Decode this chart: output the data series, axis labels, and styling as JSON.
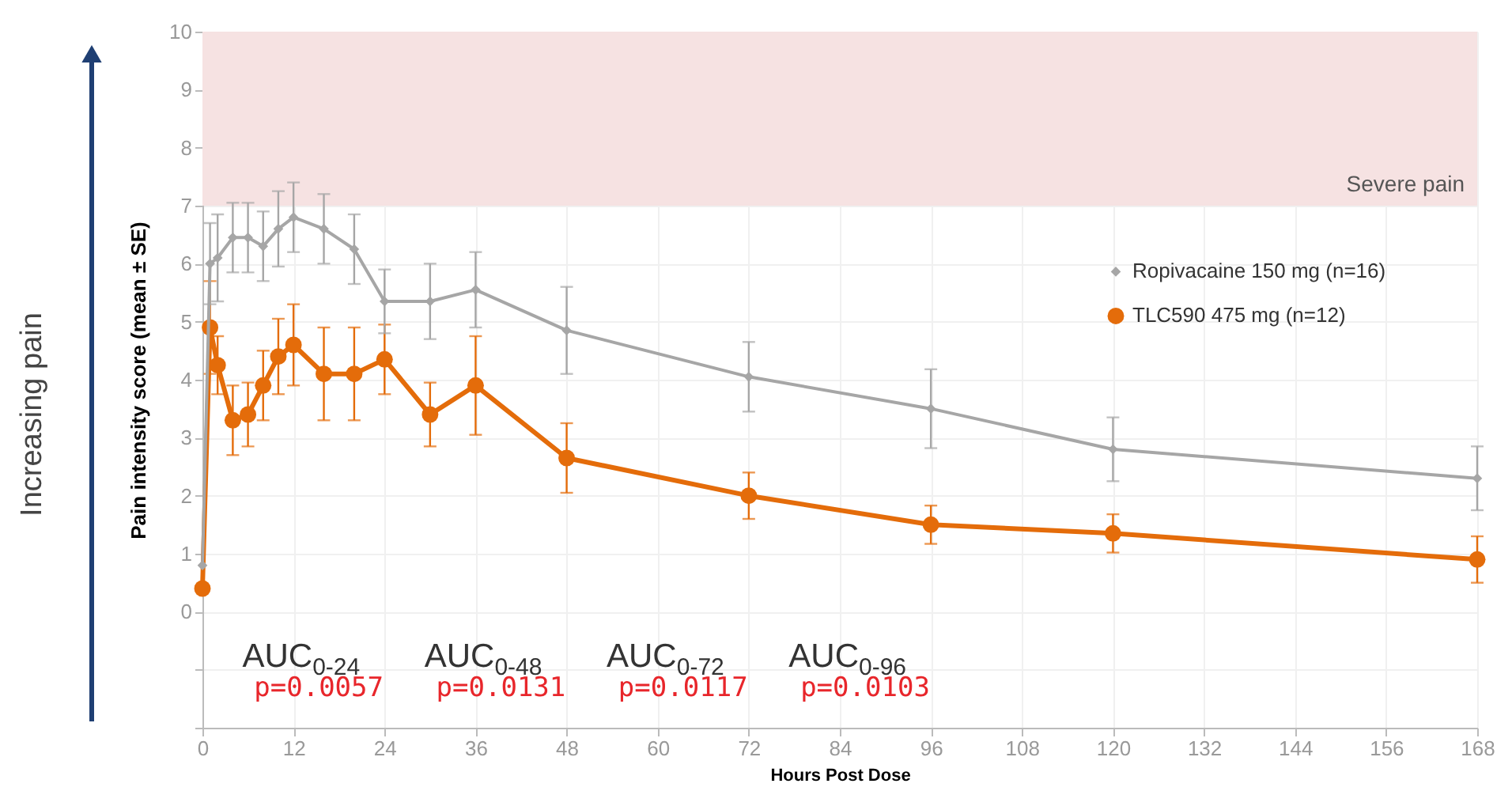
{
  "chart_data": {
    "type": "line",
    "xlabel": "Hours Post Dose",
    "ylabel": "Pain intensity score (mean ± SE)",
    "xlim": [
      0,
      168
    ],
    "xticks": [
      0,
      12,
      24,
      36,
      48,
      60,
      72,
      84,
      96,
      108,
      120,
      132,
      144,
      156,
      168
    ],
    "ylim": [
      -2,
      10
    ],
    "yticks": [
      {
        "value": -2,
        "label": null
      },
      {
        "value": -1,
        "label": null
      },
      0,
      1,
      2,
      3,
      4,
      5,
      6,
      7,
      8,
      9,
      10
    ],
    "grid": true,
    "legend": "right",
    "series": [
      {
        "name": "Ropivacaine 150 mg (n=16)",
        "color": "#a6a6a6",
        "marker": "diamond",
        "x": [
          0,
          1,
          2,
          4,
          6,
          8,
          10,
          12,
          16,
          20,
          24,
          30,
          36,
          48,
          72,
          96,
          120,
          168
        ],
        "values": [
          0.8,
          6.0,
          6.1,
          6.45,
          6.45,
          6.3,
          6.6,
          6.8,
          6.6,
          6.25,
          5.35,
          5.35,
          5.55,
          4.85,
          4.05,
          3.5,
          2.8,
          2.3
        ],
        "errors": [
          null,
          0.7,
          0.75,
          0.6,
          0.6,
          0.6,
          0.65,
          0.6,
          0.6,
          0.6,
          0.55,
          0.65,
          0.65,
          0.75,
          0.6,
          0.68,
          0.55,
          0.55
        ]
      },
      {
        "name": "TLC590 475 mg (n=12)",
        "color": "#e46c0a",
        "marker": "circle",
        "x": [
          0,
          1,
          2,
          4,
          6,
          8,
          10,
          12,
          16,
          20,
          24,
          30,
          36,
          48,
          72,
          96,
          120,
          168
        ],
        "values": [
          0.4,
          4.9,
          4.25,
          3.3,
          3.4,
          3.9,
          4.4,
          4.6,
          4.1,
          4.1,
          4.35,
          3.4,
          3.9,
          2.65,
          2.0,
          1.5,
          1.35,
          0.9
        ],
        "errors": [
          null,
          0.8,
          0.5,
          0.6,
          0.55,
          0.6,
          0.65,
          0.7,
          0.8,
          0.8,
          0.6,
          0.55,
          0.85,
          0.6,
          0.4,
          0.33,
          0.33,
          0.4
        ]
      }
    ],
    "bands": [
      {
        "axis": "y",
        "from": 7,
        "to": 10,
        "label": "Severe pain",
        "color": "#f6e2e2"
      }
    ],
    "annotations": [
      "AUC$_{0-24}$",
      "p=0.0057",
      "AUC$_{0-48}$",
      "p=0.0131",
      "AUC$_{0-72}$",
      "p=0.0117",
      "AUC$_{0-96}$",
      "p=0.0103",
      "Increasing pain"
    ]
  }
}
